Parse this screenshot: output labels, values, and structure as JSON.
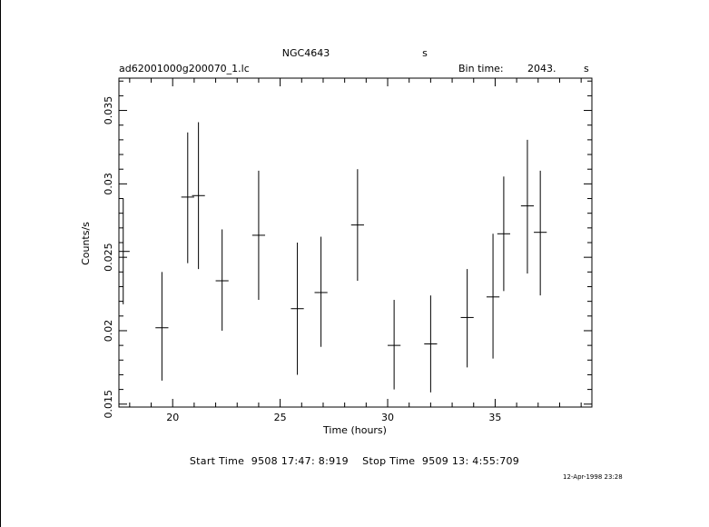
{
  "chart_data": {
    "type": "scatter",
    "title": "NGC4643",
    "title_suffix": "s",
    "file_label": "ad62001000g200070_1.lc",
    "bin_time_label": "Bin time:",
    "bin_time_value": "2043.",
    "bin_time_unit": "s",
    "xlabel": "Time (hours)",
    "ylabel": "Counts/s",
    "xlim": [
      17.5,
      39.5
    ],
    "ylim": [
      0.0148,
      0.0372
    ],
    "xticks": [
      20,
      25,
      30,
      35
    ],
    "xtick_labels": [
      "20",
      "25",
      "30",
      "35"
    ],
    "yticks": [
      0.015,
      0.02,
      0.025,
      0.03,
      0.035
    ],
    "ytick_labels": [
      "0.015",
      "0.02",
      "0.025",
      "0.03",
      "0.035"
    ],
    "grid": false,
    "series": [
      {
        "points": [
          {
            "x": 17.7,
            "y": 0.0254,
            "ylo": 0.0218,
            "yhi": 0.029,
            "xerr": 0.3
          },
          {
            "x": 19.5,
            "y": 0.0202,
            "ylo": 0.0166,
            "yhi": 0.024,
            "xerr": 0.3
          },
          {
            "x": 20.7,
            "y": 0.0291,
            "ylo": 0.0246,
            "yhi": 0.0335,
            "xerr": 0.3
          },
          {
            "x": 21.2,
            "y": 0.0292,
            "ylo": 0.0242,
            "yhi": 0.0342,
            "xerr": 0.3
          },
          {
            "x": 22.3,
            "y": 0.0234,
            "ylo": 0.02,
            "yhi": 0.0269,
            "xerr": 0.3
          },
          {
            "x": 24.0,
            "y": 0.0265,
            "ylo": 0.0221,
            "yhi": 0.0309,
            "xerr": 0.3
          },
          {
            "x": 25.8,
            "y": 0.0215,
            "ylo": 0.017,
            "yhi": 0.026,
            "xerr": 0.3
          },
          {
            "x": 26.9,
            "y": 0.0226,
            "ylo": 0.0189,
            "yhi": 0.0264,
            "xerr": 0.3
          },
          {
            "x": 28.6,
            "y": 0.0272,
            "ylo": 0.0234,
            "yhi": 0.031,
            "xerr": 0.3
          },
          {
            "x": 30.3,
            "y": 0.019,
            "ylo": 0.016,
            "yhi": 0.0221,
            "xerr": 0.3
          },
          {
            "x": 32.0,
            "y": 0.0191,
            "ylo": 0.0158,
            "yhi": 0.0224,
            "xerr": 0.3
          },
          {
            "x": 33.7,
            "y": 0.0209,
            "ylo": 0.0175,
            "yhi": 0.0242,
            "xerr": 0.3
          },
          {
            "x": 34.9,
            "y": 0.0223,
            "ylo": 0.0181,
            "yhi": 0.0266,
            "xerr": 0.3
          },
          {
            "x": 35.4,
            "y": 0.0266,
            "ylo": 0.0227,
            "yhi": 0.0305,
            "xerr": 0.3
          },
          {
            "x": 36.5,
            "y": 0.0285,
            "ylo": 0.0239,
            "yhi": 0.033,
            "xerr": 0.3
          },
          {
            "x": 37.1,
            "y": 0.0267,
            "ylo": 0.0224,
            "yhi": 0.0309,
            "xerr": 0.3
          }
        ]
      }
    ]
  },
  "footer": {
    "start_label": "Start Time",
    "start_value": "9508 17:47: 8:919",
    "stop_label": "Stop Time",
    "stop_value": "9509 13: 4:55:709"
  },
  "timestamp": "12-Apr-1998 23:28",
  "colors": {
    "ink": "#000000",
    "background": "#ffffff"
  }
}
